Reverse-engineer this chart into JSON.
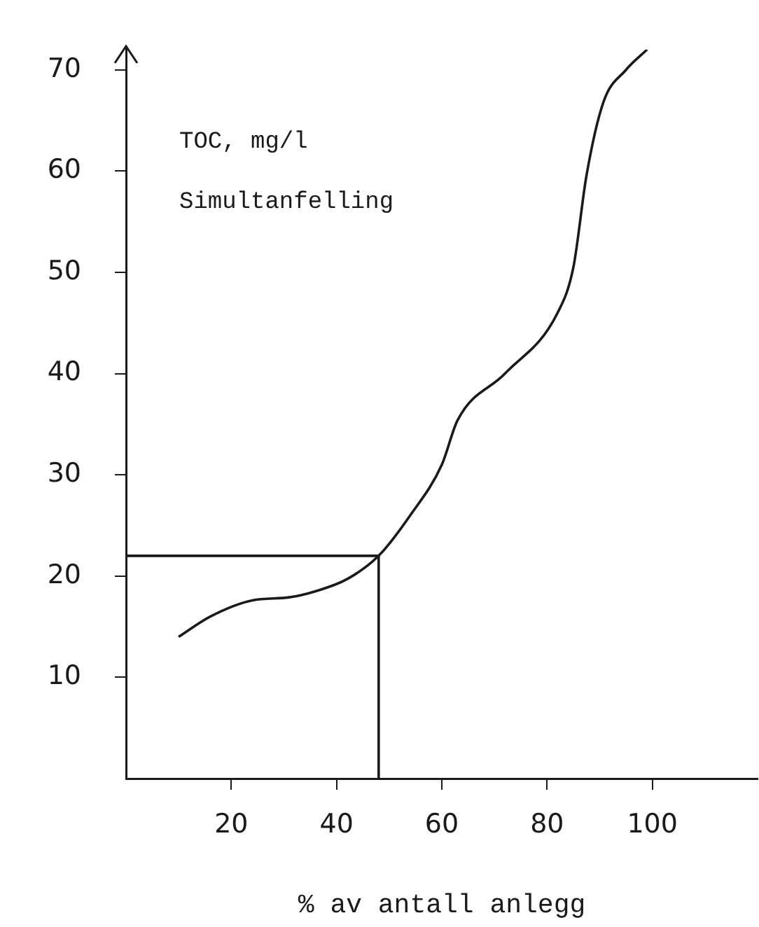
{
  "chart_data": {
    "type": "line",
    "ylabel": "TOC, mg/l",
    "xlabel": "% av antall anlegg",
    "annotations": [
      "Simultanfelling"
    ],
    "xlim": [
      0,
      120
    ],
    "xticks": [
      20,
      40,
      60,
      80,
      100
    ],
    "ylim": [
      0,
      72
    ],
    "yticks": [
      10,
      20,
      30,
      40,
      50,
      60,
      70
    ],
    "grid": false,
    "legend": false,
    "series": [
      {
        "color": "#1a1a1a",
        "x": [
          10,
          16,
          24,
          31,
          36,
          42,
          48,
          54,
          60,
          63,
          72,
          82,
          85,
          87.5,
          90.7,
          95,
          99
        ],
        "values": [
          14,
          16,
          17.6,
          17.9,
          18.5,
          19.7,
          22,
          26,
          31,
          35.4,
          40,
          46,
          50.5,
          59.6,
          66.8,
          70,
          72
        ]
      },
      {
        "color": "#1a1a1a",
        "x": [
          0,
          48,
          48
        ],
        "values": [
          22,
          22,
          0
        ]
      }
    ]
  }
}
